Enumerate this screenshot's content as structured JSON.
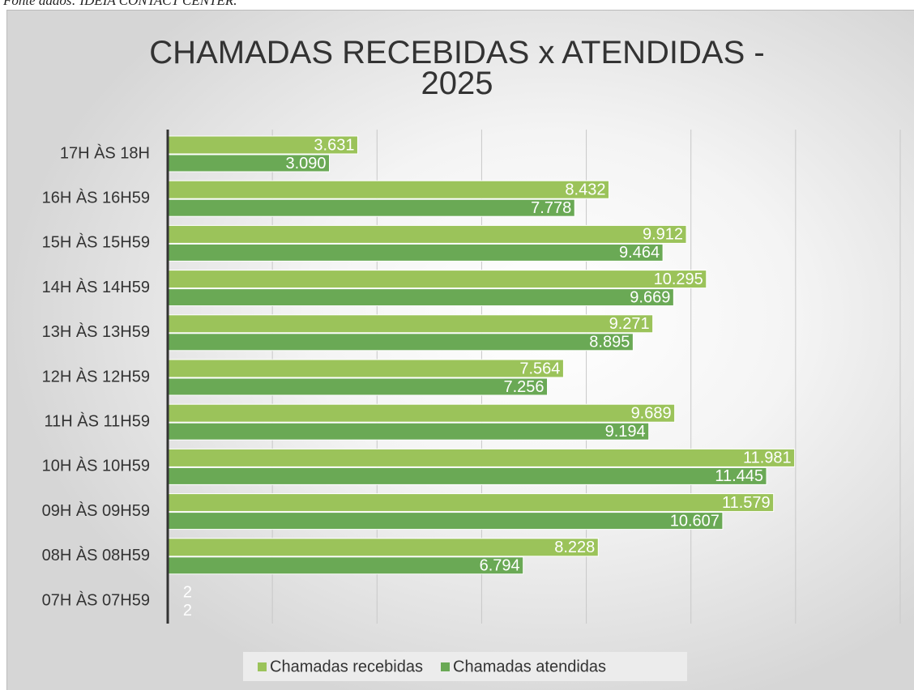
{
  "source": "Fonte dados: IDEIA CONTACT CENTER.",
  "chart_data": {
    "type": "barh",
    "title": "CHAMADAS RECEBIDAS x ATENDIDAS - 2025",
    "categories": [
      "17H ÀS 18H",
      "16H ÀS 16H59",
      "15H ÀS 15H59",
      "14H ÀS 14H59",
      "13H ÀS 13H59",
      "12H ÀS 12H59",
      "11H ÀS 11H59",
      "10H ÀS 10H59",
      "09H ÀS 09H59",
      "08H ÀS 08H59",
      "07H ÀS 07H59"
    ],
    "series": [
      {
        "name": "Chamadas recebidas",
        "color": "#9bc35a",
        "values": [
          3631,
          8432,
          9912,
          10295,
          9271,
          7564,
          9689,
          11981,
          11579,
          8228,
          2
        ],
        "value_labels": [
          "3.631",
          "8.432",
          "9.912",
          "10.295",
          "9.271",
          "7.564",
          "9.689",
          "11.981",
          "11.579",
          "8.228",
          "2"
        ]
      },
      {
        "name": "Chamadas atendidas",
        "color": "#6aa955",
        "values": [
          3090,
          7778,
          9464,
          9669,
          8895,
          7256,
          9194,
          11445,
          10607,
          6794,
          2
        ],
        "value_labels": [
          "3.090",
          "7.778",
          "9.464",
          "9.669",
          "8.895",
          "7.256",
          "9.194",
          "11.445",
          "10.607",
          "6.794",
          "2"
        ]
      }
    ],
    "xlim": [
      0,
      14000
    ],
    "xticks": [
      0,
      2000,
      4000,
      6000,
      8000,
      10000,
      12000,
      14000
    ],
    "grid": true,
    "legend": "bottom"
  }
}
